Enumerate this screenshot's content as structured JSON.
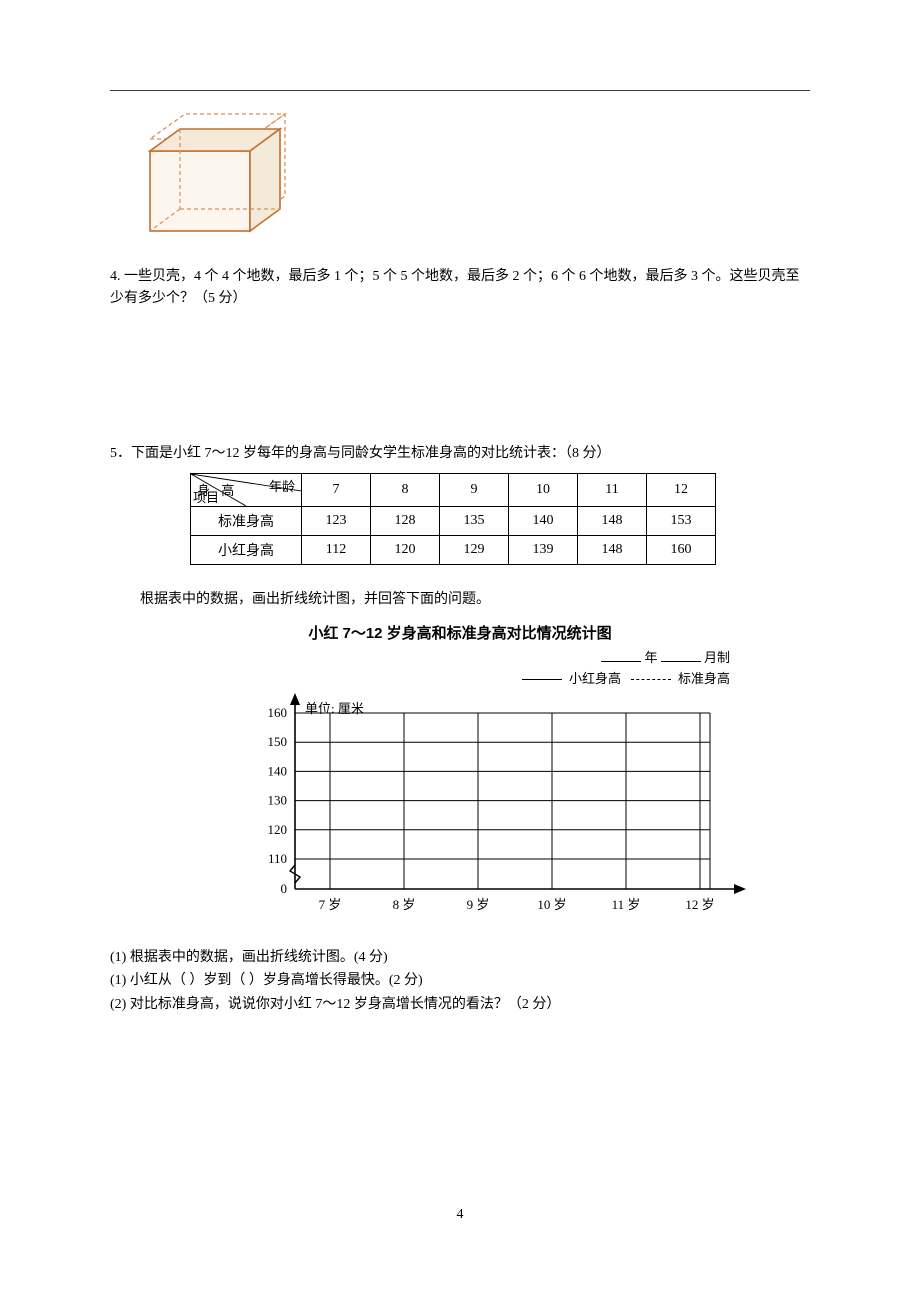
{
  "q4": {
    "text": "4. 一些贝壳，4 个 4 个地数，最后多 1 个；5 个 5 个地数，最后多 2 个；6 个 6 个地数，最后多 3 个。这些贝壳至少有多少个？（5 分）"
  },
  "q5": {
    "intro": "5．下面是小红 7～12 岁每年的身高与同龄女学生标准身高的对比统计表：（8 分）",
    "table": {
      "header_top_right": "年龄",
      "header_mid_left": "身 高",
      "header_bottom_left": "项目",
      "cols": [
        "7",
        "8",
        "9",
        "10",
        "11",
        "12"
      ],
      "rows": [
        {
          "label": "标准身高",
          "values": [
            "123",
            "128",
            "135",
            "140",
            "148",
            "153"
          ]
        },
        {
          "label": "小红身高",
          "values": [
            "112",
            "120",
            "129",
            "139",
            "148",
            "160"
          ]
        }
      ]
    },
    "after_table": "根据表中的数据，画出折线统计图，并回答下面的问题。",
    "chart": {
      "title": "小红 7～12 岁身高和标准身高对比情况统计图",
      "caption_year": "年",
      "caption_month": "月制",
      "legend_solid": "小红身高",
      "legend_dash": "标准身高",
      "y_unit_label": "单位: 厘米",
      "y_ticks": [
        "160",
        "150",
        "140",
        "130",
        "120",
        "110",
        "0"
      ],
      "y_min_visual": 0,
      "y_max_visual": 160,
      "break_between": [
        0,
        110
      ],
      "x_labels": [
        "7 岁",
        "8 岁",
        "9 岁",
        "10 岁",
        "11 岁",
        "12 岁"
      ],
      "grid_color": "#000000",
      "background_color": "#ffffff",
      "axis_color": "#000000",
      "font_size_ticks": 13
    },
    "sub_questions": [
      "(1) 根据表中的数据，画出折线统计图。(4 分)",
      "(1) 小红从（   ）岁到（   ）岁身高增长得最快。(2 分)",
      "(2) 对比标准身高，说说你对小红 7～12 岁身高增长情况的看法？（2 分）"
    ]
  },
  "page_number": "4",
  "cube": {
    "stroke_solid": "#d08040",
    "stroke_dash": "#d89058",
    "fill_wall": "#fdf6ee",
    "fill_top": "#f7e9d8"
  }
}
